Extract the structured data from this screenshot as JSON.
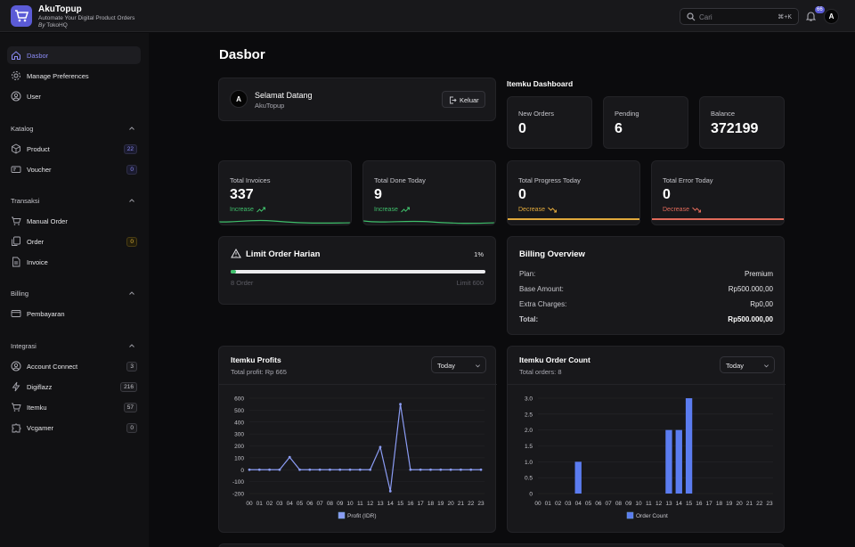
{
  "brand": {
    "title": "AkuTopup",
    "subtitle": "Automate Your Digital Product Orders",
    "by": "By",
    "org": "TokoHQ"
  },
  "header": {
    "search_placeholder": "Cari",
    "search_shortcut": "⌘+K",
    "notifications": "66",
    "avatar": "A"
  },
  "sidebar": {
    "top": [
      {
        "label": "Dasbor",
        "icon": "home-icon"
      },
      {
        "label": "Manage Preferences",
        "icon": "gear-icon"
      },
      {
        "label": "User",
        "icon": "user-icon"
      }
    ],
    "sections": [
      {
        "title": "Katalog",
        "items": [
          {
            "label": "Product",
            "badge": "22"
          },
          {
            "label": "Voucher",
            "badge": "0"
          }
        ]
      },
      {
        "title": "Transaksi",
        "items": [
          {
            "label": "Manual Order"
          },
          {
            "label": "Order",
            "badge": "0"
          },
          {
            "label": "Invoice"
          }
        ]
      },
      {
        "title": "Billing",
        "items": [
          {
            "label": "Pembayaran"
          }
        ]
      },
      {
        "title": "Integrasi",
        "items": [
          {
            "label": "Account Connect",
            "badge": "3"
          },
          {
            "label": "Digiflazz",
            "badge": "216"
          },
          {
            "label": "Itemku",
            "badge": "57"
          },
          {
            "label": "Vcgamer",
            "badge": "0"
          }
        ]
      }
    ]
  },
  "page": {
    "title": "Dasbor"
  },
  "welcome": {
    "avatar": "A",
    "greeting": "Selamat Datang",
    "name": "AkuTopup",
    "logout": "Keluar"
  },
  "itemku": {
    "title": "Itemku Dashboard",
    "cards": [
      {
        "label": "New Orders",
        "value": "0"
      },
      {
        "label": "Pending",
        "value": "6"
      },
      {
        "label": "Balance",
        "value": "372199"
      }
    ]
  },
  "stats": [
    {
      "label": "Total Invoices",
      "value": "337",
      "trend": "Increase"
    },
    {
      "label": "Total Done Today",
      "value": "9",
      "trend": "Increase"
    },
    {
      "label": "Total Progress Today",
      "value": "0",
      "trend": "Decrease"
    },
    {
      "label": "Total Error Today",
      "value": "0",
      "trend": "Decrease"
    }
  ],
  "limit": {
    "title": "Limit Order Harian",
    "percent": "1%",
    "progress": 0.01,
    "left": "8 Order",
    "right": "Limit 600"
  },
  "billing": {
    "title": "Billing Overview",
    "rows": [
      {
        "label": "Plan:",
        "value": "Premium"
      },
      {
        "label": "Base Amount:",
        "value": "Rp500.000,00"
      },
      {
        "label": "Extra Charges:",
        "value": "Rp0,00"
      },
      {
        "label": "Total:",
        "value": "Rp500.000,00"
      }
    ]
  },
  "profits": {
    "title": "Itemku Profits",
    "subtitle": "Total profit: Rp 665",
    "filter": "Today"
  },
  "orders": {
    "title": "Itemku Order Count",
    "subtitle": "Total orders: 8",
    "filter": "Today"
  },
  "chart_data": [
    {
      "type": "line",
      "x": [
        "00",
        "01",
        "02",
        "03",
        "04",
        "05",
        "06",
        "07",
        "08",
        "09",
        "10",
        "11",
        "12",
        "13",
        "14",
        "15",
        "16",
        "17",
        "18",
        "19",
        "20",
        "21",
        "22",
        "23"
      ],
      "series": [
        {
          "name": "Profit (IDR)",
          "color": "#8b9cf4",
          "values": [
            0,
            0,
            0,
            0,
            105,
            0,
            0,
            0,
            0,
            0,
            0,
            0,
            0,
            190,
            -180,
            550,
            0,
            0,
            0,
            0,
            0,
            0,
            0,
            0
          ]
        }
      ],
      "yticks": [
        "600",
        "500",
        "400",
        "300",
        "200",
        "100",
        "0",
        "-100",
        "-200"
      ],
      "ylim": [
        -200,
        600
      ],
      "legend": "bottom",
      "grid": true
    },
    {
      "type": "bar",
      "x": [
        "00",
        "01",
        "02",
        "03",
        "04",
        "05",
        "06",
        "07",
        "08",
        "09",
        "10",
        "11",
        "12",
        "13",
        "14",
        "15",
        "16",
        "17",
        "18",
        "19",
        "20",
        "21",
        "22",
        "23"
      ],
      "series": [
        {
          "name": "Order Count",
          "color": "#5b7cf0",
          "values": [
            0,
            0,
            0,
            0,
            1,
            0,
            0,
            0,
            0,
            0,
            0,
            0,
            0,
            2,
            2,
            3,
            0,
            0,
            0,
            0,
            0,
            0,
            0,
            0
          ]
        }
      ],
      "yticks": [
        "3.0",
        "2.5",
        "2.0",
        "1.5",
        "1.0",
        "0.5",
        "0"
      ],
      "ylim": [
        0,
        3
      ],
      "legend": "bottom",
      "grid": true
    }
  ]
}
